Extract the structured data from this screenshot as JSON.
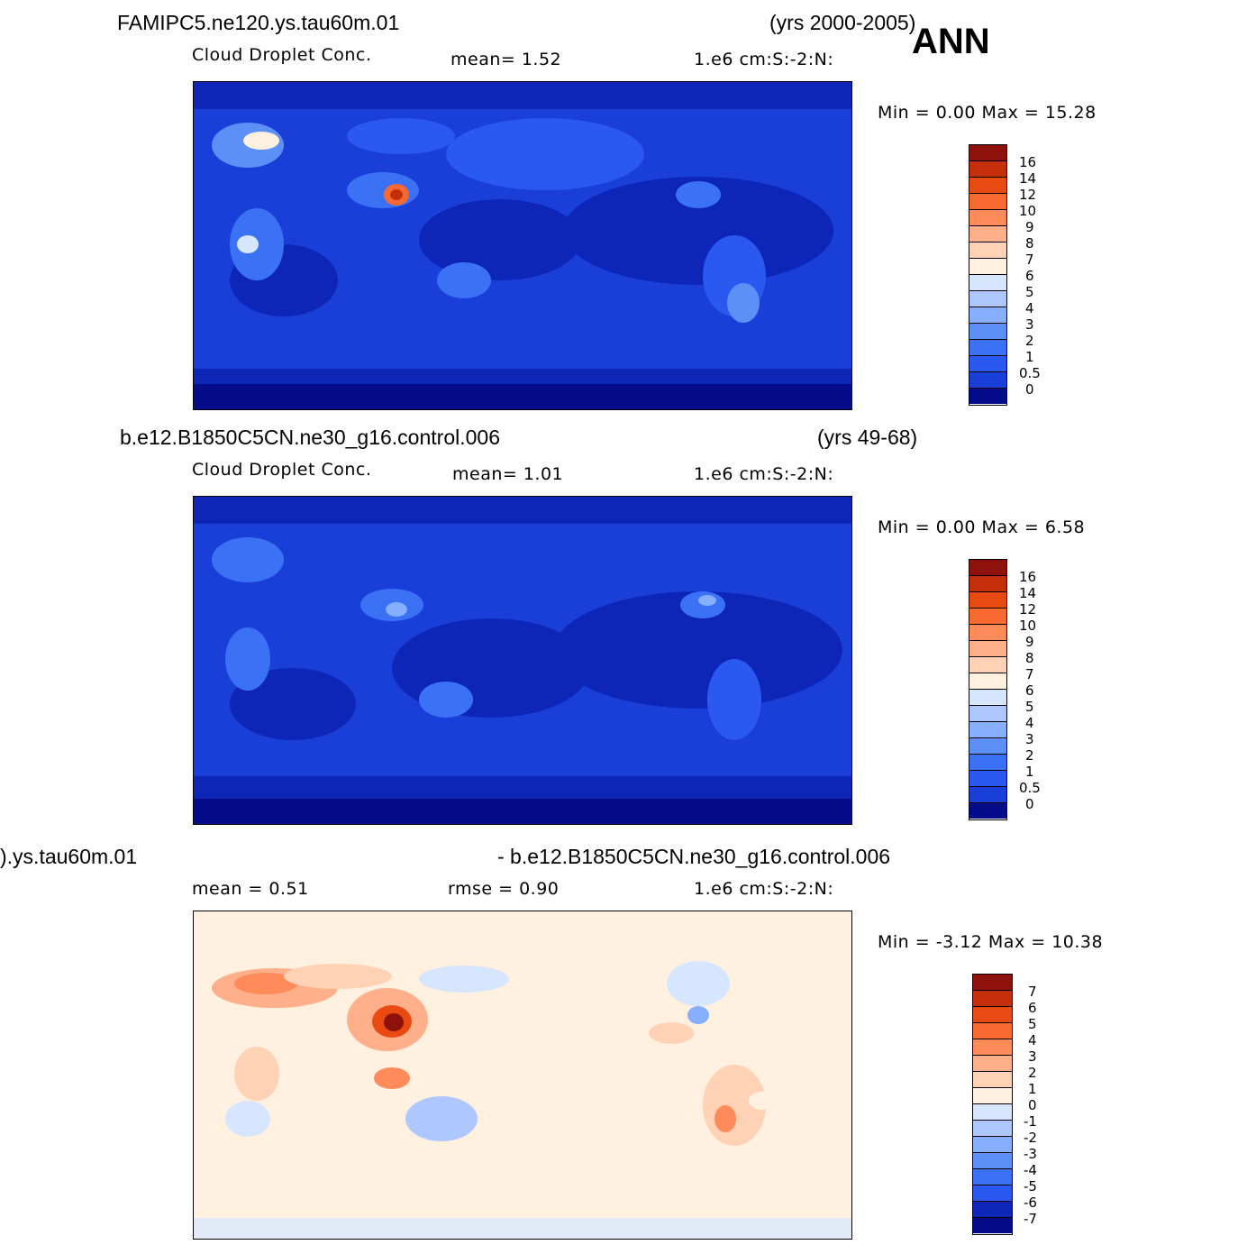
{
  "season": "ANN",
  "colors": {
    "levels17": [
      "#050c8a",
      "#0d26b8",
      "#1a3fd8",
      "#2a58f0",
      "#3b72f5",
      "#5c90f7",
      "#86afff",
      "#aec8ff",
      "#d6e6ff",
      "#fff0e0",
      "#ffd2b6",
      "#ffb08a",
      "#ff8a5a",
      "#f96a33",
      "#e84a12",
      "#c52e0b",
      "#8e120b"
    ],
    "levels16": [
      "#050c8a",
      "#0d26b8",
      "#1a3fd8",
      "#2a58f0",
      "#3b72f5",
      "#5c90f7",
      "#86afff",
      "#d6e6ff",
      "#fff0e0",
      "#ffd2b6",
      "#ffb08a",
      "#ff8a5a",
      "#f96a33",
      "#e84a12",
      "#c52e0b",
      "#8e120b"
    ]
  },
  "panels": [
    {
      "case_left": "FAMIPC5.ne120.ys.tau60m.01",
      "case_right": "(yrs 2000-2005)",
      "variable": "Cloud Droplet Conc.",
      "stat1": "mean=    1.52",
      "units": "1.e6  cm:S:-2:N:",
      "minmax": "Min =     0.00  Max =    15.28",
      "ticks": [
        "16",
        "14",
        "12",
        "10",
        "9",
        "8",
        "7",
        "6",
        "5",
        "4",
        "3",
        "2",
        "1",
        "0.5",
        "0"
      ]
    },
    {
      "case_left": "b.e12.B1850C5CN.ne30_g16.control.006",
      "case_right": "(yrs 49-68)",
      "variable": "Cloud Droplet Conc.",
      "stat1": "mean=    1.01",
      "units": "1.e6  cm:S:-2:N:",
      "minmax": "Min =     0.00  Max =     6.58",
      "ticks": [
        "16",
        "14",
        "12",
        "10",
        "9",
        "8",
        "7",
        "6",
        "5",
        "4",
        "3",
        "2",
        "1",
        "0.5",
        "0"
      ]
    },
    {
      "case_left": ").ys.tau60m.01",
      "case_right": "- b.e12.B1850C5CN.ne30_g16.control.006",
      "stat1": "mean =    0.51",
      "stat2": "rmse =     0.90",
      "units": "1.e6  cm:S:-2:N:",
      "minmax": "Min =   -3.12  Max =    10.38",
      "ticks": [
        "7",
        "6",
        "5",
        "4",
        "3",
        "2",
        "1",
        "0",
        "-1",
        "-2",
        "-3",
        "-4",
        "-5",
        "-6",
        "-7"
      ]
    }
  ]
}
